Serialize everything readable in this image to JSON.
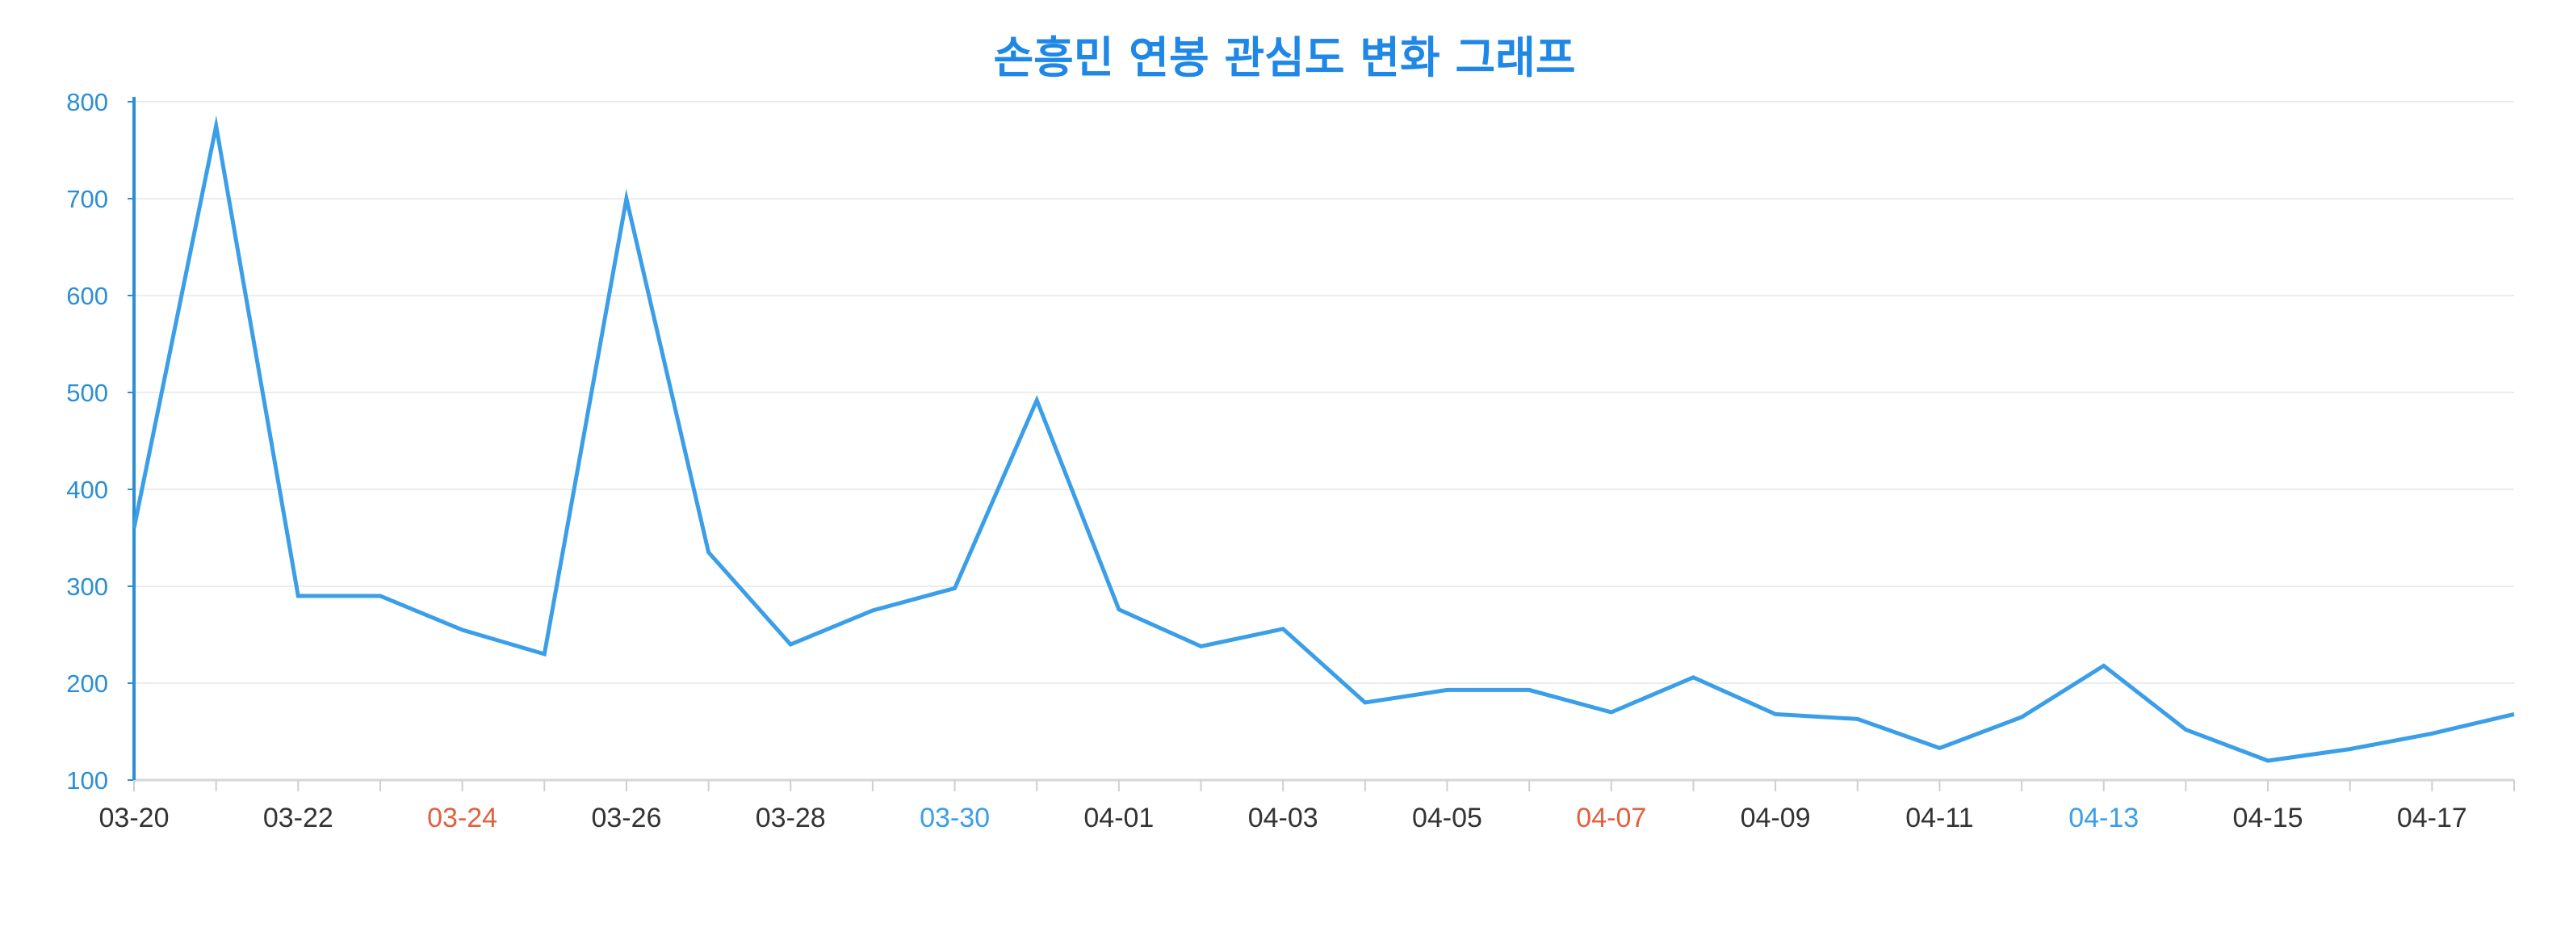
{
  "chart_data": {
    "type": "line",
    "title": "손흥민 연봉 관심도 변화 그래프",
    "xlabel": "",
    "ylabel": "",
    "x": [
      "03-20",
      "03-21",
      "03-22",
      "03-23",
      "03-24",
      "03-25",
      "03-26",
      "03-27",
      "03-28",
      "03-29",
      "03-30",
      "03-31",
      "04-01",
      "04-02",
      "04-03",
      "04-04",
      "04-05",
      "04-06",
      "04-07",
      "04-08",
      "04-09",
      "04-10",
      "04-11",
      "04-12",
      "04-13",
      "04-14",
      "04-15",
      "04-16",
      "04-17",
      "04-18"
    ],
    "x_tick_labels": [
      "03-20",
      "03-22",
      "03-24",
      "03-26",
      "03-28",
      "03-30",
      "04-01",
      "04-03",
      "04-05",
      "04-07",
      "04-09",
      "04-11",
      "04-13",
      "04-15",
      "04-17"
    ],
    "y_ticks": [
      100,
      200,
      300,
      400,
      500,
      600,
      700,
      800
    ],
    "ylim": [
      100,
      800
    ],
    "series": [
      {
        "values": [
          360,
          775,
          290,
          290,
          255,
          230,
          700,
          335,
          240,
          275,
          298,
          492,
          276,
          238,
          256,
          180,
          193,
          193,
          170,
          206,
          168,
          163,
          133,
          165,
          218,
          152,
          120,
          132,
          148,
          168
        ]
      }
    ],
    "grid": true,
    "legend": "none",
    "colors": {
      "title": "#1f87e5",
      "line": "#3a9ee8",
      "y_axis": "#2a8fd6",
      "y_tick_text": "#2a8fd6",
      "x_tick_text": "#333333",
      "x_tick_red": "#e0603f",
      "x_tick_blue": "#3a9ee8",
      "grid": "#ececec"
    },
    "x_tick_colors": {
      "03-24": "red",
      "04-07": "red",
      "03-30": "blue",
      "04-13": "blue"
    }
  }
}
